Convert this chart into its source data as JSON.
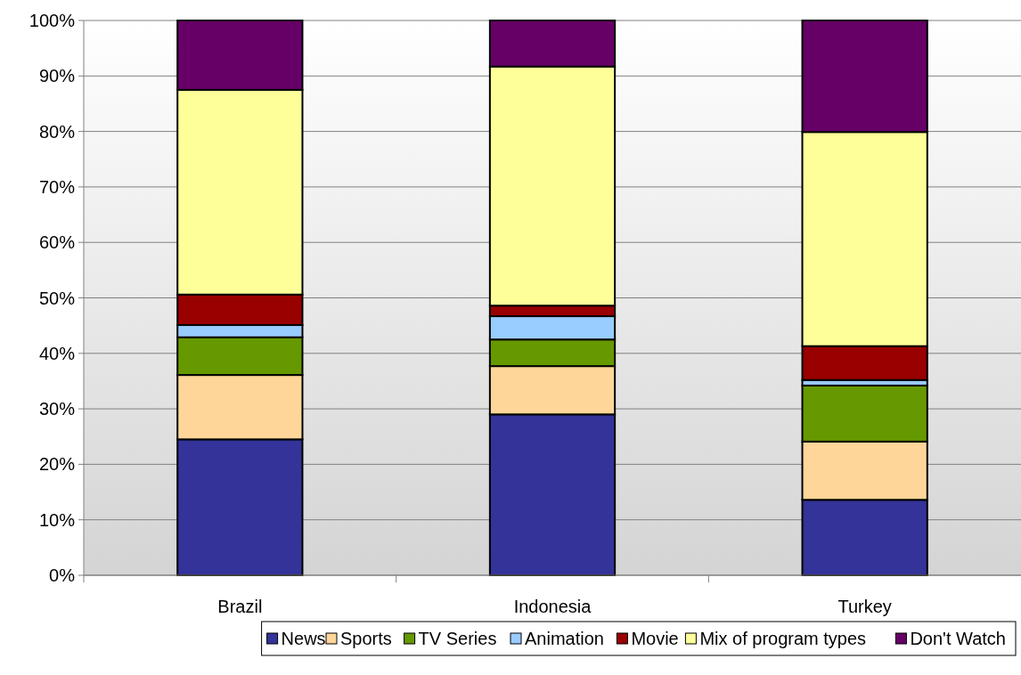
{
  "chart_data": {
    "type": "bar",
    "stacked": true,
    "categories": [
      "Brazil",
      "Indonesia",
      "Turkey"
    ],
    "series": [
      {
        "name": "News",
        "color": "#333399",
        "values": [
          24.5,
          29.0,
          13.6
        ]
      },
      {
        "name": "Sports",
        "color": "#ffd699",
        "values": [
          11.6,
          8.7,
          10.5
        ]
      },
      {
        "name": "TV Series",
        "color": "#669900",
        "values": [
          6.8,
          4.8,
          10.1
        ]
      },
      {
        "name": "Animation",
        "color": "#99ccff",
        "values": [
          2.2,
          4.2,
          1.0
        ]
      },
      {
        "name": "Movie",
        "color": "#990000",
        "values": [
          5.5,
          1.9,
          6.1
        ]
      },
      {
        "name": "Mix of program types",
        "color": "#ffff99",
        "values": [
          36.9,
          43.1,
          38.6
        ]
      },
      {
        "name": "Don't Watch",
        "color": "#660066",
        "values": [
          12.5,
          8.3,
          20.1
        ]
      }
    ],
    "ylim": [
      0,
      100
    ],
    "yticks": [
      {
        "value": 0,
        "label": "0%"
      },
      {
        "value": 10,
        "label": "10%"
      },
      {
        "value": 20,
        "label": "20%"
      },
      {
        "value": 30,
        "label": "30%"
      },
      {
        "value": 40,
        "label": "40%"
      },
      {
        "value": 50,
        "label": "50%"
      },
      {
        "value": 60,
        "label": "60%"
      },
      {
        "value": 70,
        "label": "70%"
      },
      {
        "value": 80,
        "label": "80%"
      },
      {
        "value": 90,
        "label": "90%"
      },
      {
        "value": 100,
        "label": "100%"
      }
    ],
    "grid": "y",
    "legend": "bottom"
  }
}
